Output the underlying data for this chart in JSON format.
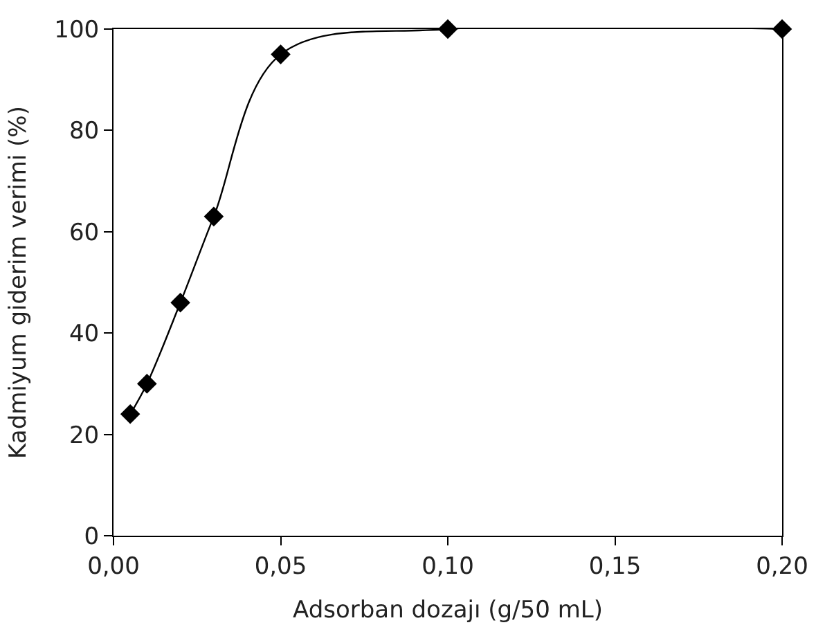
{
  "chart_data": {
    "type": "line",
    "xlabel": "Adsorban dozajı (g/50 mL)",
    "ylabel": "Kadmiyum giderim verimi (%)",
    "x": [
      0.005,
      0.01,
      0.02,
      0.03,
      0.05,
      0.1,
      0.2
    ],
    "series": [
      {
        "color": "#000000",
        "values": [
          24,
          30,
          46,
          63,
          95,
          100,
          100
        ]
      }
    ],
    "xlim": [
      0,
      0.2
    ],
    "ylim": [
      0,
      100
    ],
    "xticks": [
      {
        "value": 0,
        "label": "0,00"
      },
      {
        "value": 0.05,
        "label": "0,05"
      },
      {
        "value": 0.1,
        "label": "0,10"
      },
      {
        "value": 0.15,
        "label": "0,15"
      },
      {
        "value": 0.2,
        "label": "0,20"
      }
    ],
    "yticks": [
      0,
      20,
      40,
      60,
      80,
      100
    ],
    "marker": "diamond",
    "line_style": "solid"
  }
}
